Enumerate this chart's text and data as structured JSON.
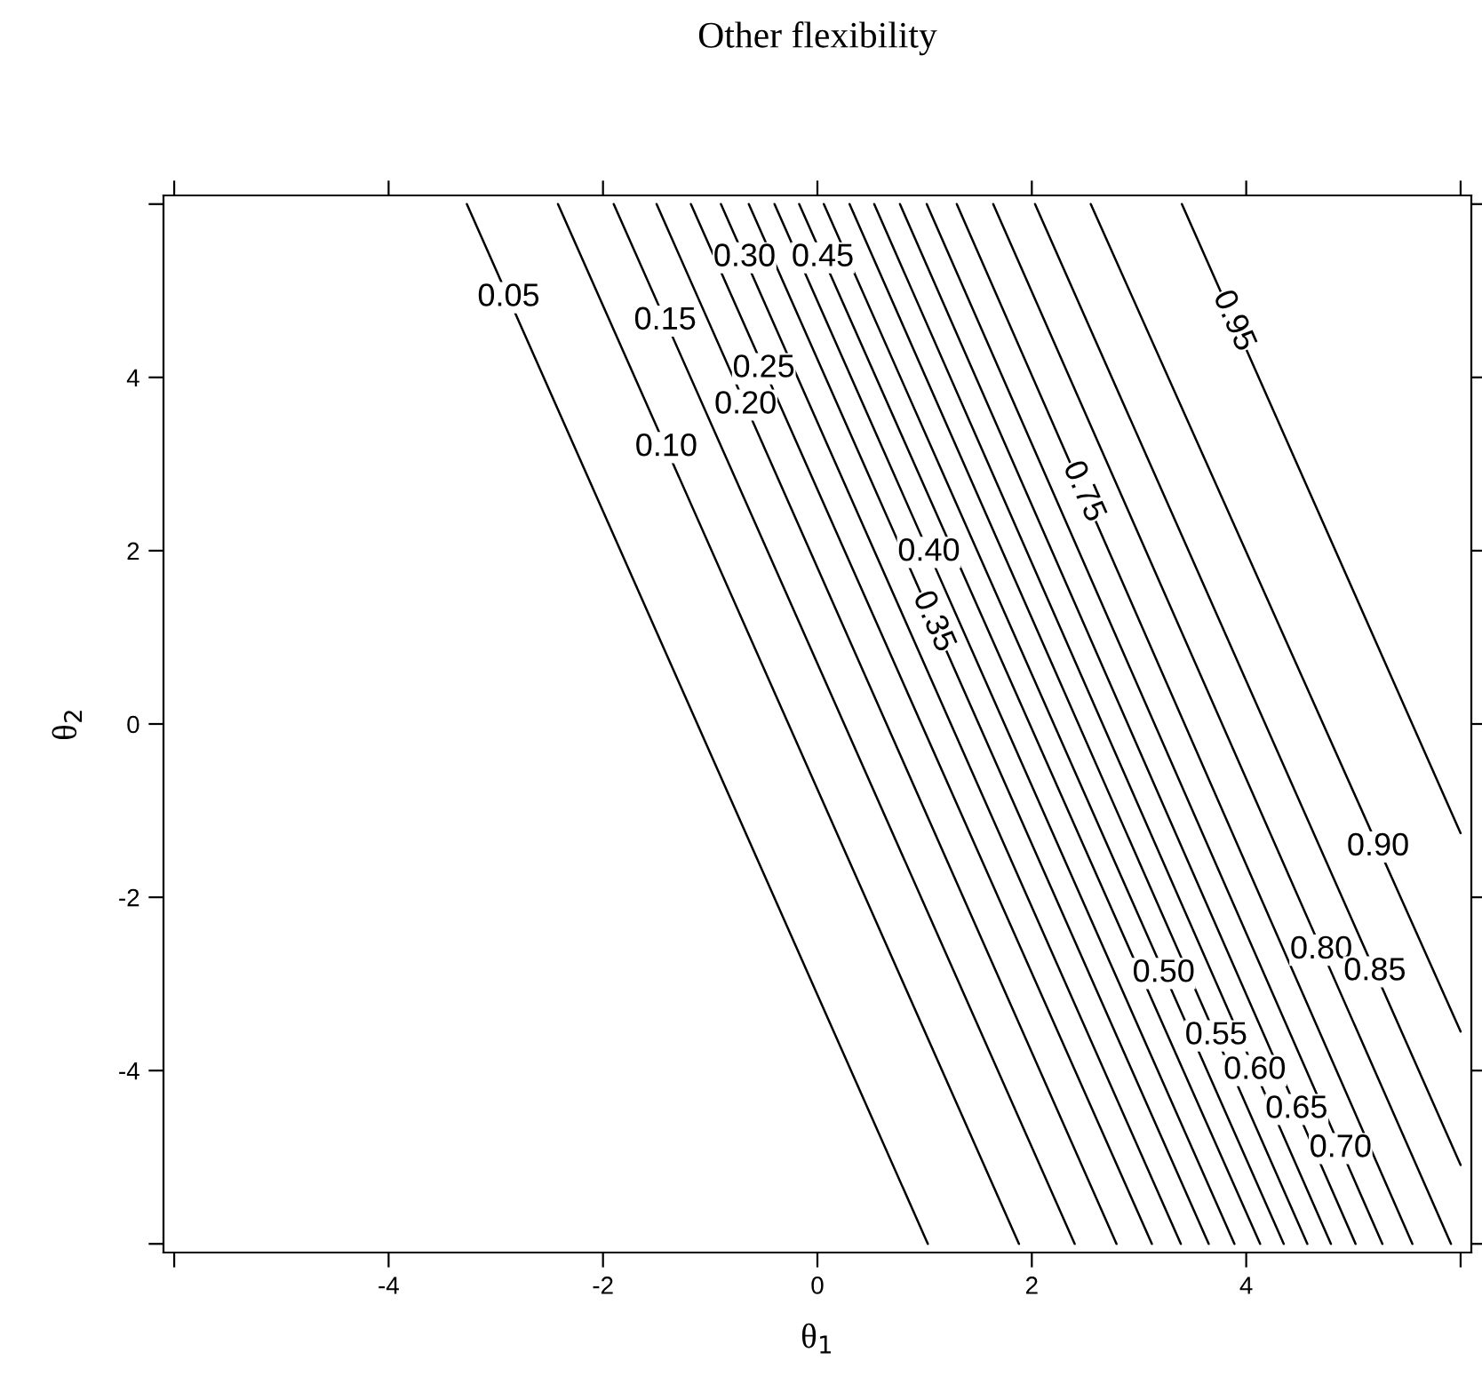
{
  "chart_data": {
    "type": "line",
    "title": "Other flexibility",
    "xlabel": "θ$_{1}$",
    "ylabel": "θ$_{2}$",
    "xlim": [
      -6.1,
      6.1
    ],
    "ylim": [
      -6.1,
      6.1
    ],
    "xticks": [
      {
        "value": -6,
        "label": null
      },
      -4,
      -2,
      0,
      2,
      4,
      {
        "value": 6,
        "label": null
      }
    ],
    "yticks": [
      {
        "value": -6,
        "label": null
      },
      -4,
      -2,
      0,
      2,
      4,
      {
        "value": 6,
        "label": null
      }
    ],
    "grid": false,
    "legend": false,
    "marker": "none",
    "line_style": "solid",
    "series": [
      {
        "color": "#000000",
        "x": [
          -3.27,
          1.03
        ],
        "values": [
          6,
          -6
        ]
      },
      {
        "color": "#000000",
        "x": [
          -2.42,
          1.88
        ],
        "values": [
          6,
          -6
        ]
      },
      {
        "color": "#000000",
        "x": [
          -1.9,
          2.4
        ],
        "values": [
          6,
          -6
        ]
      },
      {
        "color": "#000000",
        "x": [
          -1.5,
          2.79
        ],
        "values": [
          6,
          -6
        ]
      },
      {
        "color": "#000000",
        "x": [
          -1.18,
          3.12
        ],
        "values": [
          6,
          -6
        ]
      },
      {
        "color": "#000000",
        "x": [
          -0.9,
          3.39
        ],
        "values": [
          6,
          -6
        ]
      },
      {
        "color": "#000000",
        "x": [
          -0.64,
          3.65
        ],
        "values": [
          6,
          -6
        ]
      },
      {
        "color": "#000000",
        "x": [
          -0.4,
          3.89
        ],
        "values": [
          6,
          -6
        ]
      },
      {
        "color": "#000000",
        "x": [
          -0.17,
          4.13
        ],
        "values": [
          6,
          -6
        ]
      },
      {
        "color": "#000000",
        "x": [
          0.06,
          4.35
        ],
        "values": [
          6,
          -6
        ]
      },
      {
        "color": "#000000",
        "x": [
          0.3,
          4.57
        ],
        "values": [
          6,
          -6
        ]
      },
      {
        "color": "#000000",
        "x": [
          0.53,
          4.79
        ],
        "values": [
          6,
          -6
        ]
      },
      {
        "color": "#000000",
        "x": [
          0.77,
          5.02
        ],
        "values": [
          6,
          -6
        ]
      },
      {
        "color": "#000000",
        "x": [
          1.02,
          5.27
        ],
        "values": [
          6,
          -6
        ]
      },
      {
        "color": "#000000",
        "x": [
          1.3,
          5.55
        ],
        "values": [
          6,
          -6
        ]
      },
      {
        "color": "#000000",
        "x": [
          1.64,
          5.91
        ],
        "values": [
          6,
          -6
        ]
      },
      {
        "color": "#000000",
        "x": [
          2.03,
          6.0
        ],
        "values": [
          6,
          -5.09
        ]
      },
      {
        "color": "#000000",
        "x": [
          2.55,
          6.0
        ],
        "values": [
          6,
          -3.55
        ]
      },
      {
        "color": "#000000",
        "x": [
          3.4,
          6.0
        ],
        "values": [
          6,
          -1.26
        ]
      }
    ],
    "annotations": [
      {
        "text": "0.05",
        "x": -2.88,
        "y": 4.92
      },
      {
        "text": "0.10",
        "x": -1.41,
        "y": 3.19
      },
      {
        "text": "0.15",
        "x": -1.42,
        "y": 4.65
      },
      {
        "text": "0.20",
        "x": -0.67,
        "y": 3.68
      },
      {
        "text": "0.25",
        "x": -0.5,
        "y": 4.1
      },
      {
        "text": "0.30",
        "x": -0.68,
        "y": 5.38
      },
      {
        "text": "0.35",
        "x": 1.08,
        "y": 1.18
      },
      {
        "text": "0.40",
        "x": 1.04,
        "y": 1.98
      },
      {
        "text": "0.45",
        "x": 0.05,
        "y": 5.38
      },
      {
        "text": "0.50",
        "x": 3.23,
        "y": -2.88
      },
      {
        "text": "0.55",
        "x": 3.72,
        "y": -3.6
      },
      {
        "text": "0.60",
        "x": 4.08,
        "y": -4.0
      },
      {
        "text": "0.65",
        "x": 4.47,
        "y": -4.45
      },
      {
        "text": "0.70",
        "x": 4.88,
        "y": -4.9
      },
      {
        "text": "0.75",
        "x": 2.48,
        "y": 2.68
      },
      {
        "text": "0.80",
        "x": 4.7,
        "y": -2.61
      },
      {
        "text": "0.85",
        "x": 5.2,
        "y": -2.86
      },
      {
        "text": "0.90",
        "x": 5.23,
        "y": -1.42
      },
      {
        "text": "0.95",
        "x": 3.88,
        "y": 4.65
      }
    ]
  }
}
